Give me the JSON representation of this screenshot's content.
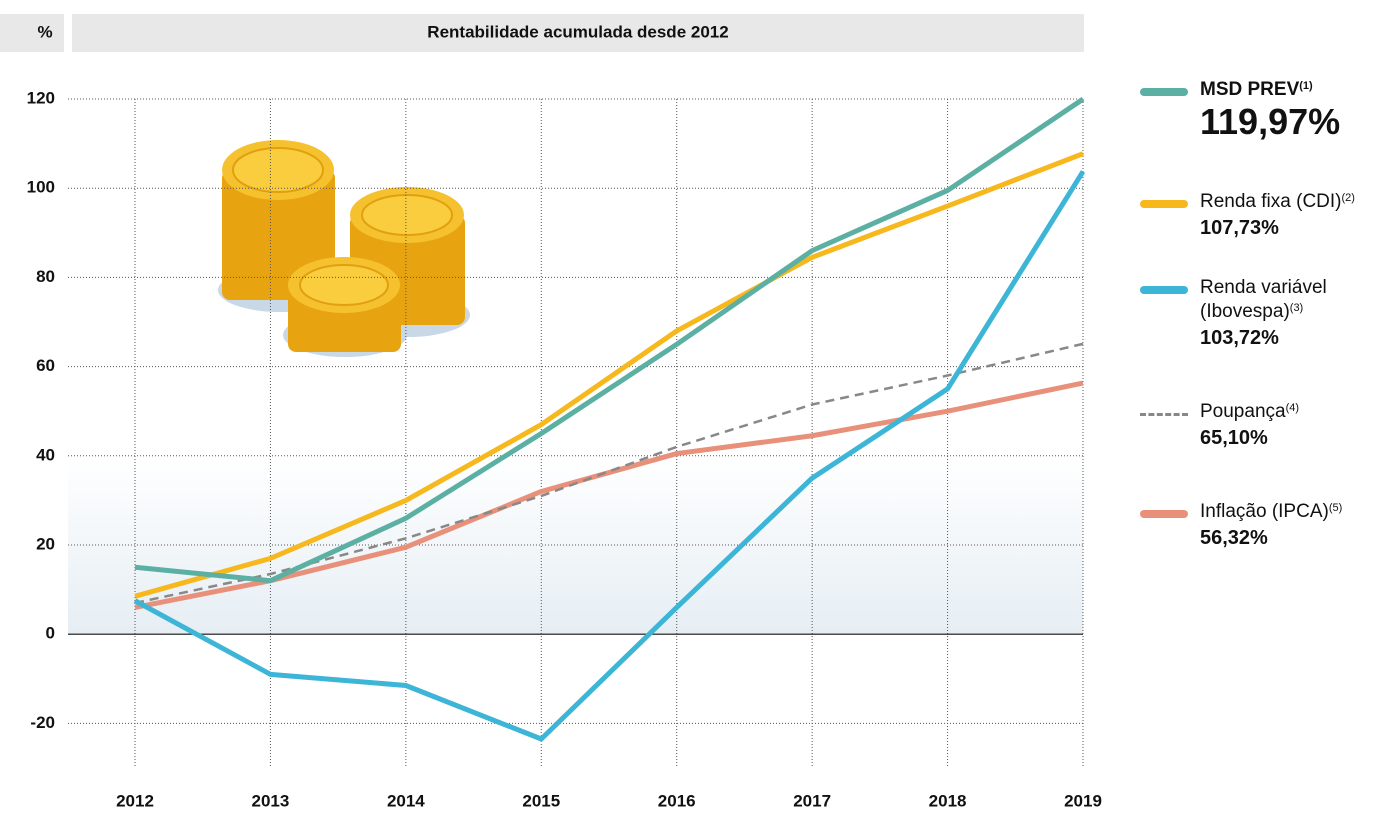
{
  "chart_data": {
    "type": "line",
    "title": "Rentabilidade acumulada desde 2012",
    "y_unit": "%",
    "x": [
      2012,
      2013,
      2014,
      2015,
      2016,
      2017,
      2018,
      2019
    ],
    "xlim": [
      2012,
      2019
    ],
    "xticks": [
      2012,
      2013,
      2014,
      2015,
      2016,
      2017,
      2018,
      2019
    ],
    "ylim": [
      -30,
      120
    ],
    "yticks": [
      -20,
      0,
      20,
      40,
      60,
      80,
      100,
      120
    ],
    "grid": true,
    "series": [
      {
        "name": "MSD PREV",
        "footnote": "(1)",
        "final_label": "119,97%",
        "color": "#5bb0a3",
        "highlight": true,
        "values": [
          15,
          12,
          26,
          45,
          65,
          86,
          99.5,
          119.97
        ]
      },
      {
        "name": "Renda fixa (CDI)",
        "footnote": "(2)",
        "final_label": "107,73%",
        "color": "#f7b81e",
        "values": [
          8.5,
          17,
          30,
          47,
          68,
          84.5,
          96,
          107.73
        ]
      },
      {
        "name": "Renda variável (Ibovespa)",
        "footnote": "(3)",
        "final_label": "103,72%",
        "color": "#3cb5d6",
        "values": [
          7.5,
          -9,
          -11.5,
          -23.5,
          6,
          35,
          55,
          103.72
        ]
      },
      {
        "name": "Poupança",
        "footnote": "(4)",
        "final_label": "65,10%",
        "color": "#888888",
        "dashed": true,
        "values": [
          7,
          13.5,
          21.5,
          31,
          42,
          51.5,
          58,
          65.1
        ]
      },
      {
        "name": "Inflação (IPCA)",
        "footnote": "(5)",
        "final_label": "56,32%",
        "color": "#e8907a",
        "values": [
          6,
          12,
          19.5,
          32,
          40.5,
          44.5,
          50,
          56.32
        ]
      }
    ]
  }
}
